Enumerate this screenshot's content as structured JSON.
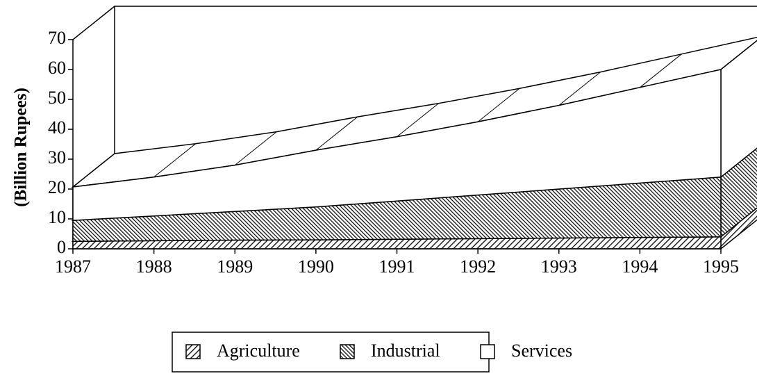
{
  "chart_data": {
    "type": "area3d",
    "y_label": "(Billion Rupees)",
    "categories": [
      "1987",
      "1988",
      "1989",
      "1990",
      "1991",
      "1992",
      "1993",
      "1994",
      "1995"
    ],
    "series": [
      {
        "name": "Agriculture",
        "color": "#333333",
        "values": [
          2.5,
          2.7,
          2.9,
          3,
          3.2,
          3.4,
          3.6,
          3.8,
          4
        ]
      },
      {
        "name": "Industrial",
        "color": "#111111",
        "values": [
          7,
          8.3,
          9.6,
          11,
          12.8,
          14.6,
          16.4,
          18.2,
          20
        ]
      },
      {
        "name": "Services",
        "color": "#ffffff",
        "values": [
          11.2,
          13,
          15.5,
          19,
          21.5,
          24.5,
          28,
          32,
          36
        ]
      }
    ],
    "stacked": true,
    "ylim": [
      0,
      70
    ],
    "yticks": [
      0,
      10,
      20,
      30,
      40,
      50,
      60,
      70
    ],
    "grid": false
  }
}
